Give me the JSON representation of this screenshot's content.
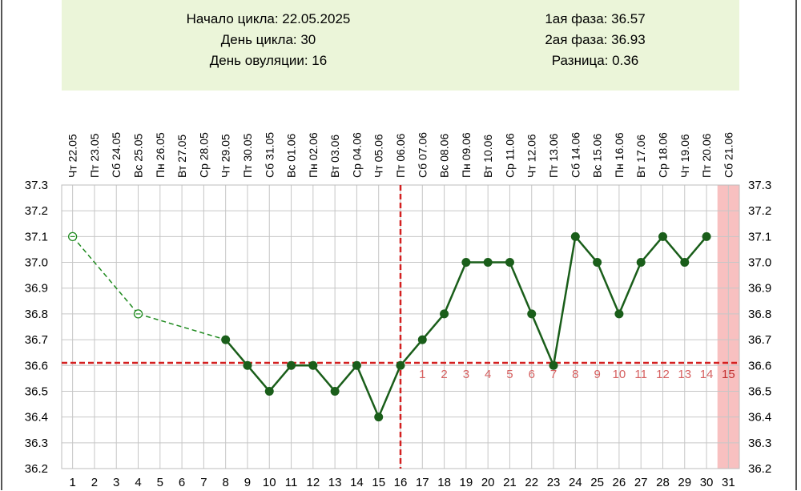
{
  "info": {
    "cycle_start": "Начало цикла: 22.05.2025",
    "cycle_day": "День цикла: 30",
    "ovulation_day": "День овуляции: 16",
    "phase1": "1ая фаза: 36.57",
    "phase2": "2ая фаза: 36.93",
    "difference": "Разница: 0.36"
  },
  "chart_data": {
    "type": "line",
    "x": [
      1,
      2,
      3,
      4,
      5,
      6,
      7,
      8,
      9,
      10,
      11,
      12,
      13,
      14,
      15,
      16,
      17,
      18,
      19,
      20,
      21,
      22,
      23,
      24,
      25,
      26,
      27,
      28,
      29,
      30,
      31
    ],
    "date_labels": [
      "Чт 22.05",
      "Пт 23.05",
      "Сб 24.05",
      "Вс 25.05",
      "Пн 26.05",
      "Вт 27.05",
      "Ср 28.05",
      "Чт 29.05",
      "Пт 30.05",
      "Сб 31.05",
      "Вс 01.06",
      "Пн 02.06",
      "Вт 03.06",
      "Ср 04.06",
      "Чт 05.06",
      "Пт 06.06",
      "Сб 07.06",
      "Вс 08.06",
      "Пн 09.06",
      "Вт 10.06",
      "Ср 11.06",
      "Чт 12.06",
      "Пт 13.06",
      "Сб 14.06",
      "Вс 15.06",
      "Пн 16.06",
      "Вт 17.06",
      "Ср 18.06",
      "Чт 19.06",
      "Пт 20.06",
      "Сб 21.06"
    ],
    "y_ticks": [
      "37.3",
      "37.2",
      "37.1",
      "37.0",
      "36.9",
      "36.8",
      "36.7",
      "36.6",
      "36.5",
      "36.4",
      "36.3",
      "36.2"
    ],
    "ylim": [
      36.2,
      37.3
    ],
    "series": [
      {
        "values": [
          37.1,
          null,
          null,
          36.8,
          null,
          null,
          null,
          36.7,
          36.6,
          36.5,
          36.6,
          36.6,
          36.5,
          36.6,
          36.4,
          36.6,
          36.7,
          36.8,
          37.0,
          37.0,
          37.0,
          36.8,
          36.6,
          37.1,
          37.0,
          36.8,
          37.0,
          37.1,
          37.0,
          37.1,
          null
        ]
      }
    ],
    "excluded_days": [
      1,
      4
    ],
    "coverline": 36.61,
    "ovulation_line_day": 16,
    "phase_labels": [
      "1",
      "2",
      "3",
      "4",
      "5",
      "6",
      "7",
      "8",
      "9",
      "10",
      "11",
      "12",
      "13",
      "14",
      "15"
    ],
    "phase_label_start_day": 17,
    "highlight_day": 31,
    "colors": {
      "line": "#1a5e1a",
      "dashed_line": "#1f8a1f",
      "coverline": "#d42020",
      "highlight": "#f8c0c0",
      "grid": "#c6c6c6",
      "phase_label": "#d66060"
    },
    "grid": true
  }
}
